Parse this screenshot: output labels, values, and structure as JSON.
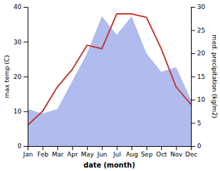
{
  "chart_data": {
    "type": "line",
    "xlabel": "date (month)",
    "ylabel": "max temp (C)",
    "y2label": "med. precipitation (kg/m2)",
    "categories": [
      "Jan",
      "Feb",
      "Mar",
      "Apr",
      "May",
      "Jun",
      "Jul",
      "Aug",
      "Sep",
      "Oct",
      "Nov",
      "Dec"
    ],
    "series": [
      {
        "type": "area",
        "axis": "y2",
        "color": "#b0bcee",
        "values": [
          8,
          7,
          8,
          14,
          20,
          28,
          24,
          28,
          20,
          16,
          17,
          10
        ]
      },
      {
        "type": "line",
        "color": "#c0392b",
        "values": [
          6,
          10,
          17,
          22,
          29,
          28,
          38,
          38,
          37,
          28,
          17,
          12
        ]
      }
    ],
    "ylim": [
      0,
      40
    ],
    "yticks": [
      0,
      10,
      20,
      30,
      40
    ],
    "y2lim": [
      0,
      30
    ],
    "y2ticks": [
      0,
      5,
      10,
      15,
      20,
      25,
      30
    ],
    "grid": false
  }
}
